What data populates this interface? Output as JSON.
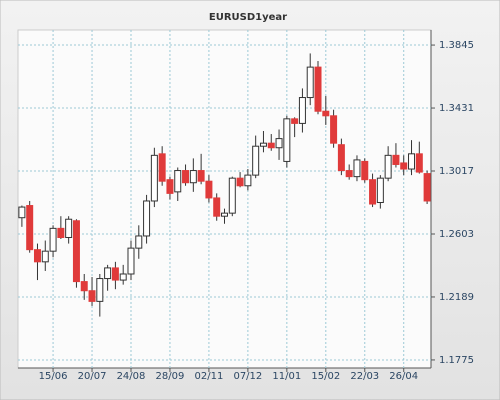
{
  "chart_data": {
    "type": "candlestick",
    "title": "EURUSD1year",
    "categories": [
      null,
      null,
      null,
      null,
      "15/06",
      null,
      null,
      null,
      null,
      "20/07",
      null,
      null,
      null,
      null,
      "24/08",
      null,
      null,
      null,
      null,
      "28/09",
      null,
      null,
      null,
      null,
      "02/11",
      null,
      null,
      null,
      null,
      "07/12",
      null,
      null,
      null,
      null,
      "11/01",
      null,
      null,
      null,
      null,
      "15/02",
      null,
      null,
      null,
      null,
      "22/03",
      null,
      null,
      null,
      null,
      "26/04",
      null,
      null,
      null
    ],
    "open": [
      1.271,
      1.279,
      1.25,
      1.242,
      1.249,
      1.264,
      1.258,
      1.269,
      1.229,
      1.223,
      1.216,
      1.231,
      1.238,
      1.23,
      1.234,
      1.251,
      1.259,
      1.282,
      1.313,
      1.296,
      1.288,
      1.302,
      1.294,
      1.302,
      1.295,
      1.284,
      1.272,
      1.274,
      1.297,
      1.292,
      1.299,
      1.318,
      1.32,
      1.317,
      1.308,
      1.336,
      1.333,
      1.35,
      1.37,
      1.341,
      1.338,
      1.319,
      1.302,
      1.298,
      1.308,
      1.296,
      1.281,
      1.297,
      1.312,
      1.307,
      1.303,
      1.313,
      1.3
    ],
    "high": [
      1.279,
      1.282,
      1.254,
      1.256,
      1.266,
      1.272,
      1.272,
      1.27,
      1.234,
      1.232,
      1.234,
      1.24,
      1.242,
      1.24,
      1.256,
      1.266,
      1.286,
      1.317,
      1.318,
      1.298,
      1.304,
      1.306,
      1.31,
      1.313,
      1.299,
      1.287,
      1.277,
      1.298,
      1.301,
      1.303,
      1.325,
      1.328,
      1.326,
      1.329,
      1.338,
      1.337,
      1.356,
      1.379,
      1.374,
      1.351,
      1.342,
      1.323,
      1.306,
      1.312,
      1.31,
      1.3,
      1.299,
      1.318,
      1.32,
      1.312,
      1.322,
      1.321,
      1.302
    ],
    "low": [
      1.265,
      1.248,
      1.23,
      1.236,
      1.245,
      1.257,
      1.254,
      1.225,
      1.217,
      1.213,
      1.206,
      1.223,
      1.224,
      1.227,
      1.23,
      1.244,
      1.254,
      1.278,
      1.292,
      1.283,
      1.282,
      1.292,
      1.288,
      1.293,
      1.281,
      1.269,
      1.267,
      1.272,
      1.291,
      1.289,
      1.297,
      1.314,
      1.315,
      1.309,
      1.304,
      1.324,
      1.327,
      1.345,
      1.339,
      1.332,
      1.317,
      1.299,
      1.296,
      1.295,
      1.294,
      1.278,
      1.277,
      1.295,
      1.304,
      1.299,
      1.299,
      1.3,
      1.28
    ],
    "close": [
      1.278,
      1.25,
      1.242,
      1.249,
      1.264,
      1.258,
      1.27,
      1.229,
      1.223,
      1.216,
      1.231,
      1.238,
      1.23,
      1.234,
      1.251,
      1.259,
      1.282,
      1.312,
      1.295,
      1.287,
      1.302,
      1.294,
      1.302,
      1.295,
      1.284,
      1.272,
      1.274,
      1.297,
      1.292,
      1.299,
      1.318,
      1.32,
      1.317,
      1.323,
      1.336,
      1.333,
      1.35,
      1.37,
      1.341,
      1.338,
      1.32,
      1.302,
      1.298,
      1.309,
      1.296,
      1.28,
      1.297,
      1.312,
      1.306,
      1.303,
      1.313,
      1.301,
      1.282
    ],
    "up_color": "#ffffff",
    "down_color": "#e03a3a",
    "edge_color": "#333333",
    "ylim": [
      1.1722,
      1.3944
    ],
    "yticks": [
      1.1775,
      1.2189,
      1.2603,
      1.3017,
      1.3431,
      1.3845
    ],
    "grid": true
  }
}
